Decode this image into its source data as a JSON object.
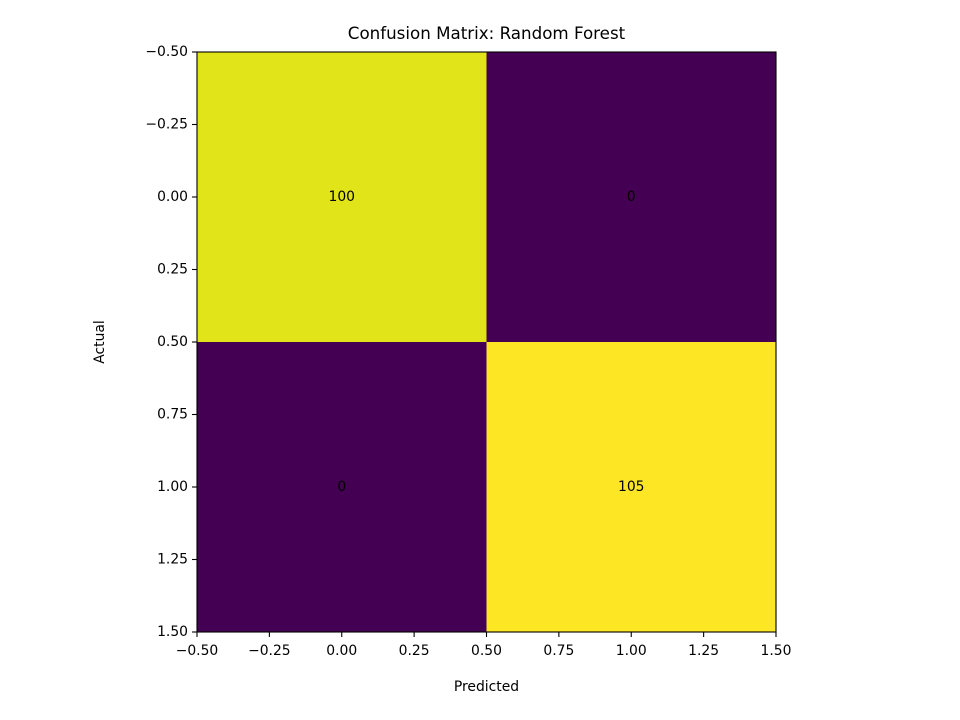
{
  "chart_data": {
    "type": "heatmap",
    "title": "Confusion Matrix: Random Forest",
    "xlabel": "Predicted",
    "ylabel": "Actual",
    "xlim": [
      -0.5,
      1.5
    ],
    "ylim": [
      -0.5,
      1.5
    ],
    "y_inverted": true,
    "xticks": [
      -0.5,
      -0.25,
      0.0,
      0.25,
      0.5,
      0.75,
      1.0,
      1.25,
      1.5
    ],
    "xtick_labels": [
      "−0.50",
      "−0.25",
      "0.00",
      "0.25",
      "0.50",
      "0.75",
      "1.00",
      "1.25",
      "1.50"
    ],
    "yticks": [
      -0.5,
      -0.25,
      0.0,
      0.25,
      0.5,
      0.75,
      1.0,
      1.25,
      1.5
    ],
    "ytick_labels": [
      "−0.50",
      "−0.25",
      "0.00",
      "0.25",
      "0.50",
      "0.75",
      "1.00",
      "1.25",
      "1.50"
    ],
    "matrix": [
      [
        100,
        0
      ],
      [
        0,
        105
      ]
    ],
    "cell_labels": [
      [
        "100",
        "0"
      ],
      [
        "0",
        "105"
      ]
    ],
    "colormap": "viridis",
    "cell_colors": [
      [
        "#e1e418",
        "#440154"
      ],
      [
        "#440154",
        "#fde725"
      ]
    ],
    "grid": false
  }
}
